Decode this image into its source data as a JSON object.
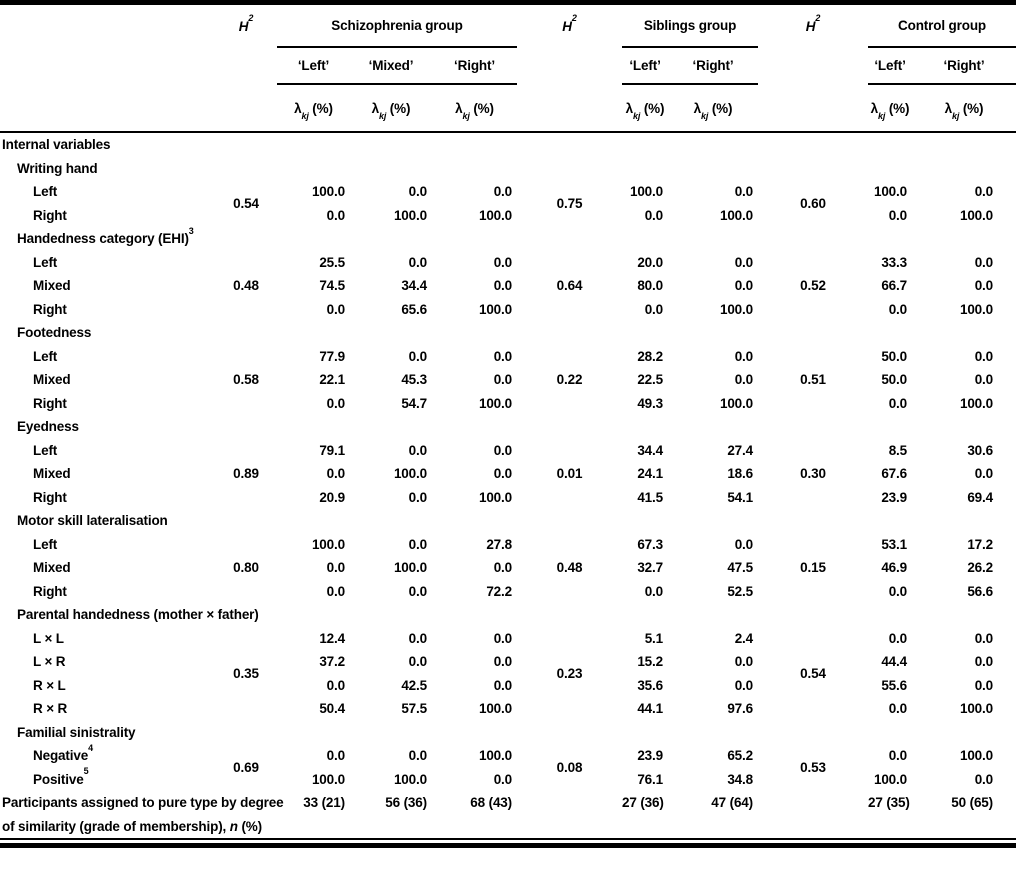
{
  "header": {
    "h2": {
      "base": "H",
      "sup": "2"
    },
    "lambda": {
      "base": "λ",
      "sub": "kj",
      "rest": " (%)"
    },
    "groups": [
      {
        "name": "Schizophrenia group",
        "types": [
          "‘Left’",
          "‘Mixed’",
          "‘Right’"
        ]
      },
      {
        "name": "Siblings group",
        "types": [
          "‘Left’",
          "‘Right’"
        ]
      },
      {
        "name": "Control group",
        "types": [
          "‘Left’",
          "‘Right’"
        ]
      }
    ]
  },
  "body": {
    "section_label": "Internal variables",
    "variables": [
      {
        "label": "Writing hand",
        "h2": [
          "0.54",
          "0.75",
          "0.60"
        ],
        "rows": [
          {
            "label": "Left",
            "values": [
              [
                "100.0",
                "0.0",
                "0.0"
              ],
              [
                "100.0",
                "0.0"
              ],
              [
                "100.0",
                "0.0"
              ]
            ]
          },
          {
            "label": "Right",
            "values": [
              [
                "0.0",
                "100.0",
                "100.0"
              ],
              [
                "0.0",
                "100.0"
              ],
              [
                "0.0",
                "100.0"
              ]
            ]
          }
        ]
      },
      {
        "label": "Handedness category (EHI)",
        "label_sup": "3",
        "h2": [
          "0.48",
          "0.64",
          "0.52"
        ],
        "rows": [
          {
            "label": "Left",
            "values": [
              [
                "25.5",
                "0.0",
                "0.0"
              ],
              [
                "20.0",
                "0.0"
              ],
              [
                "33.3",
                "0.0"
              ]
            ]
          },
          {
            "label": "Mixed",
            "values": [
              [
                "74.5",
                "34.4",
                "0.0"
              ],
              [
                "80.0",
                "0.0"
              ],
              [
                "66.7",
                "0.0"
              ]
            ]
          },
          {
            "label": "Right",
            "values": [
              [
                "0.0",
                "65.6",
                "100.0"
              ],
              [
                "0.0",
                "100.0"
              ],
              [
                "0.0",
                "100.0"
              ]
            ]
          }
        ]
      },
      {
        "label": "Footedness",
        "h2": [
          "0.58",
          "0.22",
          "0.51"
        ],
        "rows": [
          {
            "label": "Left",
            "values": [
              [
                "77.9",
                "0.0",
                "0.0"
              ],
              [
                "28.2",
                "0.0"
              ],
              [
                "50.0",
                "0.0"
              ]
            ]
          },
          {
            "label": "Mixed",
            "values": [
              [
                "22.1",
                "45.3",
                "0.0"
              ],
              [
                "22.5",
                "0.0"
              ],
              [
                "50.0",
                "0.0"
              ]
            ]
          },
          {
            "label": "Right",
            "values": [
              [
                "0.0",
                "54.7",
                "100.0"
              ],
              [
                "49.3",
                "100.0"
              ],
              [
                "0.0",
                "100.0"
              ]
            ]
          }
        ]
      },
      {
        "label": "Eyedness",
        "h2": [
          "0.89",
          "0.01",
          "0.30"
        ],
        "rows": [
          {
            "label": "Left",
            "values": [
              [
                "79.1",
                "0.0",
                "0.0"
              ],
              [
                "34.4",
                "27.4"
              ],
              [
                "8.5",
                "30.6"
              ]
            ]
          },
          {
            "label": "Mixed",
            "values": [
              [
                "0.0",
                "100.0",
                "0.0"
              ],
              [
                "24.1",
                "18.6"
              ],
              [
                "67.6",
                "0.0"
              ]
            ]
          },
          {
            "label": "Right",
            "values": [
              [
                "20.9",
                "0.0",
                "100.0"
              ],
              [
                "41.5",
                "54.1"
              ],
              [
                "23.9",
                "69.4"
              ]
            ]
          }
        ]
      },
      {
        "label": "Motor skill lateralisation",
        "h2": [
          "0.80",
          "0.48",
          "0.15"
        ],
        "rows": [
          {
            "label": "Left",
            "values": [
              [
                "100.0",
                "0.0",
                "27.8"
              ],
              [
                "67.3",
                "0.0"
              ],
              [
                "53.1",
                "17.2"
              ]
            ]
          },
          {
            "label": "Mixed",
            "values": [
              [
                "0.0",
                "100.0",
                "0.0"
              ],
              [
                "32.7",
                "47.5"
              ],
              [
                "46.9",
                "26.2"
              ]
            ]
          },
          {
            "label": "Right",
            "values": [
              [
                "0.0",
                "0.0",
                "72.2"
              ],
              [
                "0.0",
                "52.5"
              ],
              [
                "0.0",
                "56.6"
              ]
            ]
          }
        ]
      },
      {
        "label": "Parental handedness (mother × father)",
        "h2": [
          "0.35",
          "0.23",
          "0.54"
        ],
        "rows": [
          {
            "label": "L × L",
            "values": [
              [
                "12.4",
                "0.0",
                "0.0"
              ],
              [
                "5.1",
                "2.4"
              ],
              [
                "0.0",
                "0.0"
              ]
            ]
          },
          {
            "label": "L × R",
            "values": [
              [
                "37.2",
                "0.0",
                "0.0"
              ],
              [
                "15.2",
                "0.0"
              ],
              [
                "44.4",
                "0.0"
              ]
            ]
          },
          {
            "label": "R × L",
            "values": [
              [
                "0.0",
                "42.5",
                "0.0"
              ],
              [
                "35.6",
                "0.0"
              ],
              [
                "55.6",
                "0.0"
              ]
            ]
          },
          {
            "label": "R × R",
            "values": [
              [
                "50.4",
                "57.5",
                "100.0"
              ],
              [
                "44.1",
                "97.6"
              ],
              [
                "0.0",
                "100.0"
              ]
            ]
          }
        ]
      },
      {
        "label": "Familial sinistrality",
        "h2": [
          "0.69",
          "0.08",
          "0.53"
        ],
        "rows": [
          {
            "label": "Negative",
            "label_sup": "4",
            "values": [
              [
                "0.0",
                "0.0",
                "100.0"
              ],
              [
                "23.9",
                "65.2"
              ],
              [
                "0.0",
                "100.0"
              ]
            ]
          },
          {
            "label": "Positive",
            "label_sup": "5",
            "values": [
              [
                "100.0",
                "100.0",
                "0.0"
              ],
              [
                "76.1",
                "34.8"
              ],
              [
                "100.0",
                "0.0"
              ]
            ]
          }
        ]
      }
    ],
    "footer": {
      "label_parts": [
        {
          "text": "Participants assigned to pure type by degree of similarity (grade of membership), "
        },
        {
          "text": "n",
          "italic": true
        },
        {
          "text": " (%)"
        }
      ],
      "values": [
        [
          "33 (21)",
          "56 (36)",
          "68 (43)"
        ],
        [
          "27 (36)",
          "47 (64)"
        ],
        [
          "27 (35)",
          "50 (65)"
        ]
      ]
    }
  }
}
